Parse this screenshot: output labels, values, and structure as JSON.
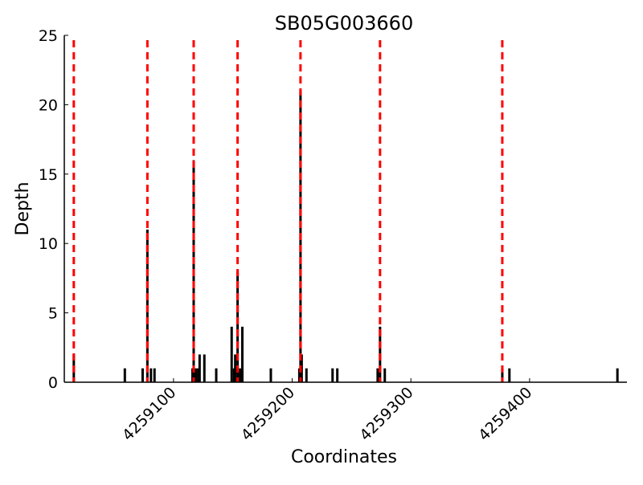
{
  "chart_data": {
    "type": "bar",
    "title": "SB05G003660",
    "xlabel": "Coordinates",
    "ylabel": "Depth",
    "xlim": [
      4259008,
      4259482
    ],
    "ylim": [
      0,
      25
    ],
    "yticks": [
      0,
      5,
      10,
      15,
      20,
      25
    ],
    "xticks": [
      4259100,
      4259200,
      4259300,
      4259400
    ],
    "bar_color": "#000000",
    "marker_color": "#ff0000",
    "bars": [
      {
        "x": 4259016,
        "y": 2
      },
      {
        "x": 4259059,
        "y": 1
      },
      {
        "x": 4259074,
        "y": 1
      },
      {
        "x": 4259078,
        "y": 11
      },
      {
        "x": 4259081,
        "y": 1
      },
      {
        "x": 4259084,
        "y": 1
      },
      {
        "x": 4259116,
        "y": 1
      },
      {
        "x": 4259117,
        "y": 16
      },
      {
        "x": 4259119,
        "y": 1
      },
      {
        "x": 4259121,
        "y": 1
      },
      {
        "x": 4259122,
        "y": 2
      },
      {
        "x": 4259126,
        "y": 2
      },
      {
        "x": 4259136,
        "y": 1
      },
      {
        "x": 4259149,
        "y": 4
      },
      {
        "x": 4259151,
        "y": 1
      },
      {
        "x": 4259152,
        "y": 2
      },
      {
        "x": 4259154,
        "y": 8
      },
      {
        "x": 4259156,
        "y": 1
      },
      {
        "x": 4259158,
        "y": 4
      },
      {
        "x": 4259182,
        "y": 1
      },
      {
        "x": 4259206,
        "y": 1
      },
      {
        "x": 4259207,
        "y": 21
      },
      {
        "x": 4259208,
        "y": 2
      },
      {
        "x": 4259212,
        "y": 1
      },
      {
        "x": 4259234,
        "y": 1
      },
      {
        "x": 4259238,
        "y": 1
      },
      {
        "x": 4259272,
        "y": 1
      },
      {
        "x": 4259274,
        "y": 4
      },
      {
        "x": 4259278,
        "y": 1
      },
      {
        "x": 4259377,
        "y": 1
      },
      {
        "x": 4259383,
        "y": 1
      },
      {
        "x": 4259474,
        "y": 1
      }
    ],
    "vlines": [
      4259016,
      4259078,
      4259117,
      4259154,
      4259207,
      4259274,
      4259377
    ]
  }
}
